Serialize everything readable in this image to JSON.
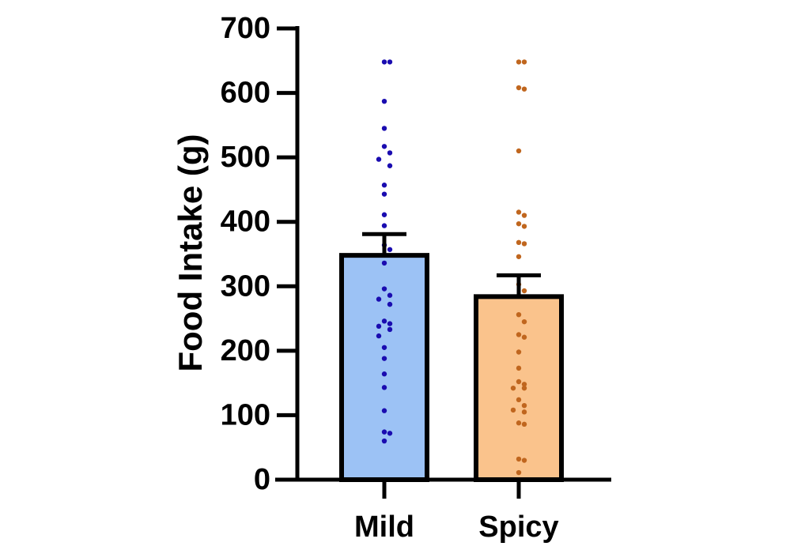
{
  "chart_data": {
    "type": "bar",
    "title": "",
    "xlabel": "",
    "ylabel": "Food Intake (g)",
    "ylim": [
      0,
      700
    ],
    "yticks": [
      "0",
      "100",
      "200",
      "300",
      "400",
      "500",
      "600",
      "700"
    ],
    "grid": false,
    "legend": "none",
    "categories": [
      "Mild",
      "Spicy"
    ],
    "values": [
      348,
      284
    ],
    "error_upper": [
      381,
      317
    ],
    "colors": {
      "bar_fill": [
        "#9cc2f5",
        "#fac38c"
      ],
      "bar_edge": "#000000",
      "points": [
        "#1a0cb0",
        "#c0661e"
      ]
    },
    "points": [
      [
        648,
        648,
        587,
        545,
        517,
        507,
        497,
        487,
        457,
        443,
        411,
        394,
        364,
        357,
        336,
        296,
        286,
        280,
        272,
        246,
        242,
        238,
        233,
        223,
        205,
        188,
        164,
        143,
        107,
        74,
        72,
        60
      ],
      [
        648,
        648,
        608,
        606,
        510,
        415,
        410,
        397,
        393,
        368,
        366,
        346,
        303,
        293,
        256,
        245,
        225,
        221,
        198,
        173,
        152,
        148,
        142,
        142,
        124,
        115,
        108,
        105,
        88,
        86,
        32,
        30,
        11
      ]
    ]
  }
}
